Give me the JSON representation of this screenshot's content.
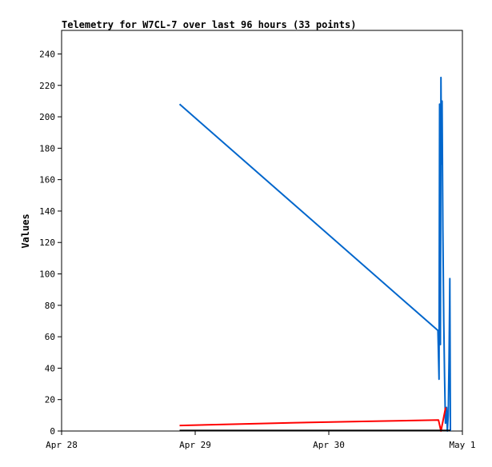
{
  "chart_data": {
    "type": "line",
    "title": "Telemetry for W7CL-7 over last 96 hours (33 points)",
    "xlabel": "",
    "ylabel": "Values",
    "xlim": [
      0,
      72
    ],
    "ylim": [
      0,
      255
    ],
    "x_unit": "hours since Apr 28 00:00",
    "x_ticks": [
      {
        "x": 0,
        "label": "Apr 28"
      },
      {
        "x": 24,
        "label": "Apr 29"
      },
      {
        "x": 48,
        "label": "Apr 30"
      },
      {
        "x": 72,
        "label": "May 1"
      }
    ],
    "y_ticks": [
      0,
      20,
      40,
      60,
      80,
      100,
      120,
      140,
      160,
      180,
      200,
      220,
      240
    ],
    "grid": false,
    "legend": "none",
    "series": [
      {
        "color": "#0066cc",
        "points": [
          [
            21.2,
            208
          ],
          [
            67.6,
            64
          ],
          [
            67.8,
            33
          ],
          [
            67.9,
            208
          ],
          [
            68.05,
            55
          ],
          [
            68.15,
            225
          ],
          [
            68.25,
            170
          ],
          [
            68.35,
            210
          ],
          [
            68.5,
            128
          ],
          [
            68.65,
            70
          ],
          [
            68.8,
            35
          ],
          [
            68.95,
            5
          ],
          [
            69.15,
            15
          ],
          [
            69.3,
            0
          ],
          [
            69.45,
            10
          ],
          [
            69.6,
            45
          ],
          [
            69.7,
            80
          ],
          [
            69.75,
            97
          ],
          [
            69.85,
            0
          ]
        ]
      },
      {
        "color": "#ff0000",
        "points": [
          [
            21.2,
            3.5
          ],
          [
            30,
            4.3
          ],
          [
            42,
            5.3
          ],
          [
            54,
            6.1
          ],
          [
            67.7,
            7
          ],
          [
            68.15,
            0
          ],
          [
            69.0,
            15
          ]
        ]
      },
      {
        "color": "#000000",
        "points": [
          [
            21.2,
            0.3
          ],
          [
            69.85,
            0.3
          ]
        ]
      }
    ]
  }
}
